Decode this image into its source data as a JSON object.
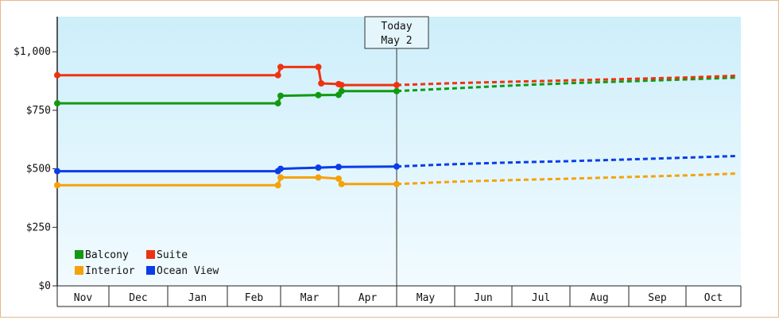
{
  "chart_data": {
    "type": "line",
    "title": "",
    "xlabel": "",
    "ylabel": "",
    "x_axis_months": [
      "Nov",
      "Dec",
      "Jan",
      "Feb",
      "Mar",
      "Apr",
      "May",
      "Jun",
      "Jul",
      "Aug",
      "Sep",
      "Oct"
    ],
    "ylim": [
      0,
      1150
    ],
    "yticks": [
      {
        "value": 0,
        "label": "$0"
      },
      {
        "value": 250,
        "label": "$250"
      },
      {
        "value": 500,
        "label": "$500"
      },
      {
        "value": 750,
        "label": "$750"
      },
      {
        "value": 1000,
        "label": "$1,000"
      }
    ],
    "today": {
      "label": "Today",
      "date": "May 2",
      "month_index": 6.0
    },
    "grid": false,
    "legend_position": "bottom-left",
    "series": [
      {
        "name": "Balcony",
        "color": "#119a11",
        "history": [
          [
            0.0,
            780
          ],
          [
            3.95,
            780
          ],
          [
            4.0,
            812
          ],
          [
            4.65,
            815
          ],
          [
            4.68,
            815
          ],
          [
            4.7,
            815
          ],
          [
            5.0,
            816
          ],
          [
            5.05,
            832
          ],
          [
            6.0,
            832
          ]
        ],
        "history_markers": [
          [
            0.0,
            780
          ],
          [
            3.95,
            780
          ],
          [
            4.0,
            812
          ],
          [
            4.65,
            815
          ],
          [
            5.0,
            816
          ],
          [
            5.05,
            832
          ],
          [
            6.0,
            832
          ]
        ],
        "forecast": [
          [
            6.0,
            832
          ],
          [
            7.0,
            844
          ],
          [
            8.0,
            856
          ],
          [
            9.0,
            866
          ],
          [
            10.0,
            874
          ],
          [
            11.0,
            882
          ],
          [
            11.95,
            890
          ]
        ]
      },
      {
        "name": "Suite",
        "color": "#ee3311",
        "history": [
          [
            0.0,
            900
          ],
          [
            3.95,
            900
          ],
          [
            4.0,
            935
          ],
          [
            4.65,
            935
          ],
          [
            4.7,
            865
          ],
          [
            5.0,
            862
          ],
          [
            5.05,
            858
          ],
          [
            6.0,
            858
          ]
        ],
        "history_markers": [
          [
            0.0,
            900
          ],
          [
            3.95,
            900
          ],
          [
            4.0,
            935
          ],
          [
            4.65,
            935
          ],
          [
            4.7,
            865
          ],
          [
            5.0,
            862
          ],
          [
            5.05,
            858
          ],
          [
            6.0,
            858
          ]
        ],
        "forecast": [
          [
            6.0,
            858
          ],
          [
            7.0,
            866
          ],
          [
            8.0,
            872
          ],
          [
            9.0,
            878
          ],
          [
            10.0,
            884
          ],
          [
            11.0,
            890
          ],
          [
            11.95,
            898
          ]
        ]
      },
      {
        "name": "Interior",
        "color": "#f5a20a",
        "history": [
          [
            0.0,
            430
          ],
          [
            3.95,
            430
          ],
          [
            4.0,
            463
          ],
          [
            4.65,
            463
          ],
          [
            4.7,
            463
          ],
          [
            5.0,
            458
          ],
          [
            5.05,
            435
          ],
          [
            6.0,
            435
          ]
        ],
        "history_markers": [
          [
            0.0,
            430
          ],
          [
            3.95,
            430
          ],
          [
            4.0,
            463
          ],
          [
            4.65,
            463
          ],
          [
            5.0,
            458
          ],
          [
            5.05,
            435
          ],
          [
            6.0,
            435
          ]
        ],
        "forecast": [
          [
            6.0,
            435
          ],
          [
            7.0,
            445
          ],
          [
            8.0,
            452
          ],
          [
            9.0,
            458
          ],
          [
            10.0,
            465
          ],
          [
            11.0,
            472
          ],
          [
            11.95,
            480
          ]
        ]
      },
      {
        "name": "Ocean View",
        "color": "#0a3de8",
        "history": [
          [
            0.0,
            490
          ],
          [
            3.95,
            490
          ],
          [
            4.0,
            500
          ],
          [
            4.65,
            505
          ],
          [
            5.0,
            508
          ],
          [
            6.0,
            510
          ]
        ],
        "history_markers": [
          [
            0.0,
            490
          ],
          [
            3.95,
            490
          ],
          [
            4.0,
            500
          ],
          [
            4.65,
            505
          ],
          [
            5.0,
            508
          ],
          [
            6.0,
            510
          ]
        ],
        "forecast": [
          [
            6.0,
            510
          ],
          [
            7.0,
            520
          ],
          [
            8.0,
            527
          ],
          [
            9.0,
            533
          ],
          [
            10.0,
            540
          ],
          [
            11.0,
            548
          ],
          [
            11.95,
            555
          ]
        ]
      }
    ],
    "legend_order": [
      "Balcony",
      "Suite",
      "Interior",
      "Ocean View"
    ]
  }
}
